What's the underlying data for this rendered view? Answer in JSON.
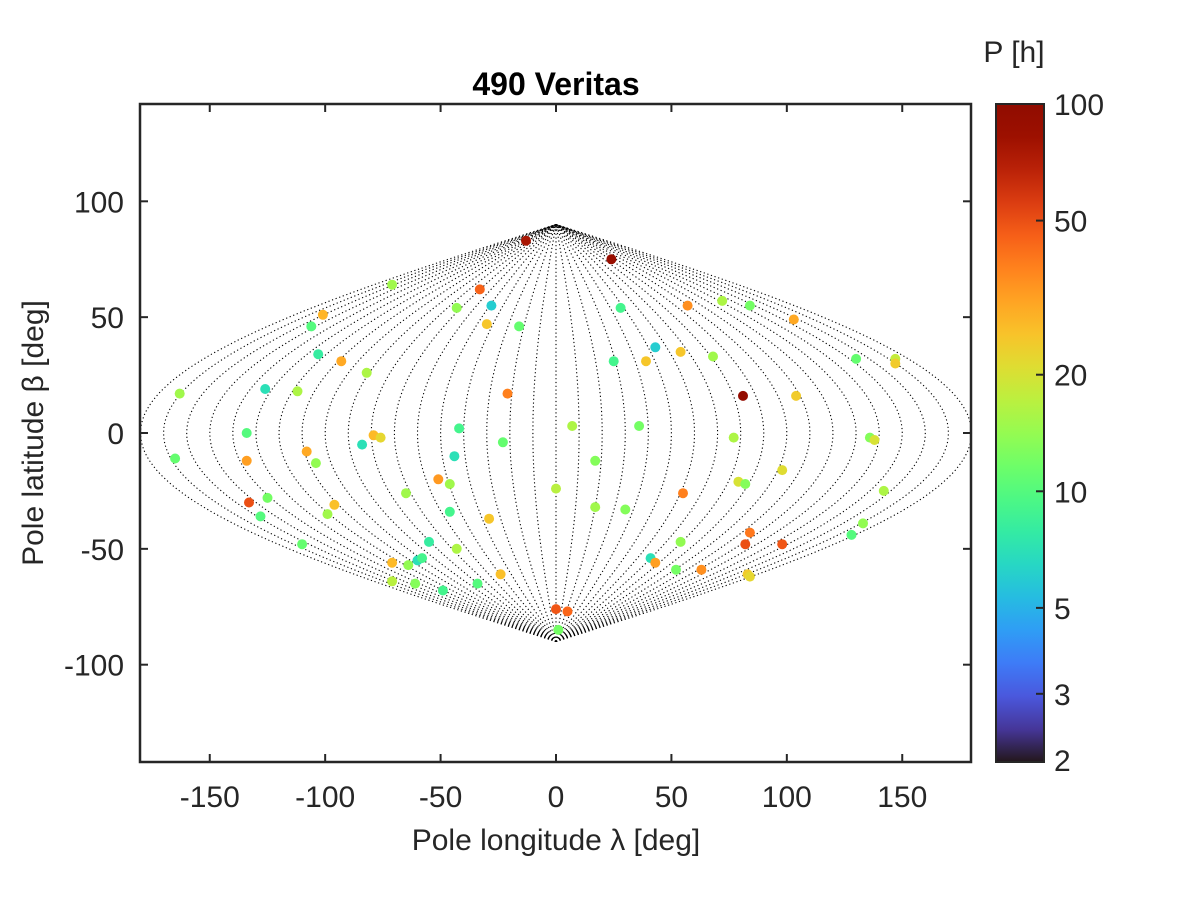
{
  "chart_data": {
    "type": "scatter",
    "title": "490 Veritas",
    "xlabel": "Pole longitude λ [deg]",
    "ylabel": "Pole latitude β [deg]",
    "xlim": [
      -180,
      180
    ],
    "ylim": [
      -142,
      142
    ],
    "xticks": [
      -150,
      -100,
      -50,
      0,
      50,
      100,
      150
    ],
    "yticks": [
      -100,
      -50,
      0,
      50,
      100
    ],
    "xtick_labels": [
      "-150",
      "-100",
      "-50",
      "0",
      "50",
      "100",
      "150"
    ],
    "ytick_labels": [
      "-100",
      "-50",
      "0",
      "50",
      "100"
    ],
    "grid": "sinusoidal projection meridians (dotted)",
    "colorbar": {
      "label": "P [h]",
      "scale": "log",
      "range": [
        2,
        100
      ],
      "ticks": [
        2,
        3,
        5,
        10,
        20,
        50,
        100
      ],
      "tick_labels": [
        "2",
        "3",
        "5",
        "10",
        "20",
        "50",
        "100"
      ],
      "colormap": "turbo"
    },
    "points": [
      {
        "x": -13,
        "y": 83,
        "p": 75
      },
      {
        "x": 24,
        "y": 75,
        "p": 85
      },
      {
        "x": -71,
        "y": 64,
        "p": 15
      },
      {
        "x": -33,
        "y": 62,
        "p": 45
      },
      {
        "x": -43,
        "y": 54,
        "p": 14
      },
      {
        "x": -28,
        "y": 55,
        "p": 6
      },
      {
        "x": -101,
        "y": 51,
        "p": 28
      },
      {
        "x": -106,
        "y": 46,
        "p": 10
      },
      {
        "x": -30,
        "y": 47,
        "p": 25
      },
      {
        "x": -16,
        "y": 46,
        "p": 11
      },
      {
        "x": 28,
        "y": 54,
        "p": 9
      },
      {
        "x": 57,
        "y": 55,
        "p": 35
      },
      {
        "x": 72,
        "y": 57,
        "p": 16
      },
      {
        "x": 84,
        "y": 55,
        "p": 12
      },
      {
        "x": 103,
        "y": 49,
        "p": 30
      },
      {
        "x": -103,
        "y": 34,
        "p": 8
      },
      {
        "x": -93,
        "y": 31,
        "p": 30
      },
      {
        "x": -82,
        "y": 26,
        "p": 16
      },
      {
        "x": 43,
        "y": 37,
        "p": 6
      },
      {
        "x": 25,
        "y": 31,
        "p": 9
      },
      {
        "x": 39,
        "y": 31,
        "p": 25
      },
      {
        "x": 54,
        "y": 35,
        "p": 25
      },
      {
        "x": 68,
        "y": 33,
        "p": 15
      },
      {
        "x": 130,
        "y": 32,
        "p": 11
      },
      {
        "x": 147,
        "y": 32,
        "p": 18
      },
      {
        "x": 147,
        "y": 30,
        "p": 24
      },
      {
        "x": -163,
        "y": 17,
        "p": 15
      },
      {
        "x": -126,
        "y": 19,
        "p": 7
      },
      {
        "x": -112,
        "y": 18,
        "p": 16
      },
      {
        "x": -21,
        "y": 17,
        "p": 38
      },
      {
        "x": 81,
        "y": 16,
        "p": 90
      },
      {
        "x": 104,
        "y": 16,
        "p": 24
      },
      {
        "x": -134,
        "y": 0,
        "p": 10
      },
      {
        "x": -84,
        "y": -5,
        "p": 7
      },
      {
        "x": -79,
        "y": -1,
        "p": 27
      },
      {
        "x": -76,
        "y": -2,
        "p": 22
      },
      {
        "x": -42,
        "y": 2,
        "p": 9
      },
      {
        "x": -23,
        "y": -4,
        "p": 11
      },
      {
        "x": 7,
        "y": 3,
        "p": 16
      },
      {
        "x": 36,
        "y": 3,
        "p": 12
      },
      {
        "x": 77,
        "y": -2,
        "p": 16
      },
      {
        "x": 136,
        "y": -2,
        "p": 13
      },
      {
        "x": 138,
        "y": -3,
        "p": 20
      },
      {
        "x": -165,
        "y": -11,
        "p": 11
      },
      {
        "x": -134,
        "y": -12,
        "p": 32
      },
      {
        "x": -108,
        "y": -8,
        "p": 30
      },
      {
        "x": -104,
        "y": -13,
        "p": 14
      },
      {
        "x": -44,
        "y": -10,
        "p": 7
      },
      {
        "x": 17,
        "y": -12,
        "p": 13
      },
      {
        "x": 98,
        "y": -16,
        "p": 21
      },
      {
        "x": -133,
        "y": -30,
        "p": 50
      },
      {
        "x": -125,
        "y": -28,
        "p": 12
      },
      {
        "x": -96,
        "y": -31,
        "p": 26
      },
      {
        "x": -99,
        "y": -35,
        "p": 15
      },
      {
        "x": -65,
        "y": -26,
        "p": 15
      },
      {
        "x": -51,
        "y": -20,
        "p": 33
      },
      {
        "x": -46,
        "y": -22,
        "p": 15
      },
      {
        "x": -46,
        "y": -34,
        "p": 9
      },
      {
        "x": 0,
        "y": -24,
        "p": 17
      },
      {
        "x": 17,
        "y": -32,
        "p": 15
      },
      {
        "x": 30,
        "y": -33,
        "p": 13
      },
      {
        "x": 55,
        "y": -26,
        "p": 38
      },
      {
        "x": 79,
        "y": -21,
        "p": 20
      },
      {
        "x": 82,
        "y": -22,
        "p": 13
      },
      {
        "x": 142,
        "y": -25,
        "p": 16
      },
      {
        "x": -128,
        "y": -36,
        "p": 10
      },
      {
        "x": -110,
        "y": -48,
        "p": 11
      },
      {
        "x": -29,
        "y": -37,
        "p": 25
      },
      {
        "x": -55,
        "y": -47,
        "p": 8
      },
      {
        "x": -43,
        "y": -50,
        "p": 16
      },
      {
        "x": 54,
        "y": -47,
        "p": 14
      },
      {
        "x": 84,
        "y": -43,
        "p": 40
      },
      {
        "x": 82,
        "y": -48,
        "p": 50
      },
      {
        "x": 98,
        "y": -48,
        "p": 48
      },
      {
        "x": 128,
        "y": -44,
        "p": 10
      },
      {
        "x": 133,
        "y": -39,
        "p": 14
      },
      {
        "x": -71,
        "y": -56,
        "p": 27
      },
      {
        "x": -64,
        "y": -57,
        "p": 14
      },
      {
        "x": -60,
        "y": -55,
        "p": 7
      },
      {
        "x": -58,
        "y": -54,
        "p": 9
      },
      {
        "x": -71,
        "y": -64,
        "p": 17
      },
      {
        "x": -61,
        "y": -65,
        "p": 13
      },
      {
        "x": -49,
        "y": -68,
        "p": 9
      },
      {
        "x": -34,
        "y": -65,
        "p": 10
      },
      {
        "x": -24,
        "y": -61,
        "p": 26
      },
      {
        "x": 41,
        "y": -54,
        "p": 7
      },
      {
        "x": 43,
        "y": -56,
        "p": 32
      },
      {
        "x": 52,
        "y": -59,
        "p": 12
      },
      {
        "x": 63,
        "y": -59,
        "p": 35
      },
      {
        "x": 83,
        "y": -61,
        "p": 24
      },
      {
        "x": 84,
        "y": -62,
        "p": 22
      },
      {
        "x": 0,
        "y": -76,
        "p": 48
      },
      {
        "x": 5,
        "y": -77,
        "p": 44
      },
      {
        "x": 1,
        "y": -85,
        "p": 12
      }
    ]
  }
}
